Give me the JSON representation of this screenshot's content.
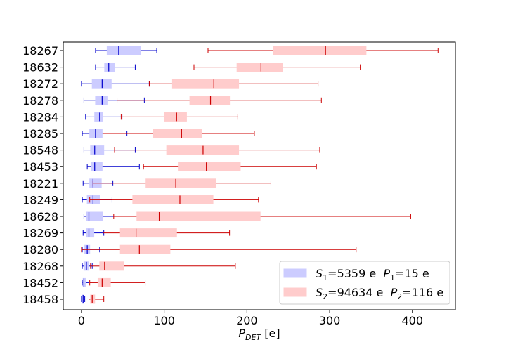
{
  "chart_data": {
    "type": "boxplot-horizontal",
    "xlabel": "P",
    "xlabel_sub": "DET",
    "xlabel_unit": " [e]",
    "xlim": [
      -22,
      452
    ],
    "xticks": [
      0,
      100,
      200,
      300,
      400
    ],
    "tick_labels": [
      "0",
      "100",
      "200",
      "300",
      "400"
    ],
    "categories": [
      "18267",
      "18632",
      "18272",
      "18278",
      "18284",
      "18285",
      "18548",
      "18453",
      "18221",
      "18249",
      "18628",
      "18269",
      "18280",
      "18268",
      "18452",
      "18458"
    ],
    "series": [
      {
        "name": "S1",
        "color": "#0000cc",
        "fill": "#ccccff",
        "legend": {
          "s_sym": "S",
          "s_sub": "1",
          "s_val": "=5359 e  ",
          "p_sym": "P",
          "p_sub": "1",
          "p_val": "=15 e"
        },
        "boxes": [
          {
            "min": 17,
            "q1": 31,
            "median": 45,
            "q3": 71,
            "max": 91
          },
          {
            "min": 17,
            "q1": 28,
            "median": 33,
            "q3": 40,
            "max": 65
          },
          {
            "min": 0,
            "q1": 13,
            "median": 25,
            "q3": 36,
            "max": 82
          },
          {
            "min": 3,
            "q1": 17,
            "median": 25,
            "q3": 31,
            "max": 76
          },
          {
            "min": 5,
            "q1": 16,
            "median": 22,
            "q3": 26,
            "max": 49
          },
          {
            "min": 1,
            "q1": 10,
            "median": 17,
            "q3": 25,
            "max": 55
          },
          {
            "min": 3,
            "q1": 11,
            "median": 16,
            "q3": 27,
            "max": 65
          },
          {
            "min": 7,
            "q1": 12,
            "median": 16,
            "q3": 25,
            "max": 70
          },
          {
            "min": 2,
            "q1": 10,
            "median": 14,
            "q3": 24,
            "max": 38
          },
          {
            "min": 1,
            "q1": 7,
            "median": 14,
            "q3": 22,
            "max": 37
          },
          {
            "min": 3,
            "q1": 6,
            "median": 9,
            "q3": 26,
            "max": 84
          },
          {
            "min": 2,
            "q1": 6,
            "median": 9,
            "q3": 15,
            "max": 27
          },
          {
            "min": 1,
            "q1": 4,
            "median": 7,
            "q3": 10,
            "max": 22
          },
          {
            "min": 1,
            "q1": 3,
            "median": 6,
            "q3": 9,
            "max": 13
          },
          {
            "min": 1,
            "q1": 2,
            "median": 3,
            "q3": 5,
            "max": 9
          },
          {
            "min": 0,
            "q1": 1,
            "median": 2,
            "q3": 3,
            "max": 4
          }
        ]
      },
      {
        "name": "S2",
        "color": "#cc0000",
        "fill": "#ffcccc",
        "legend": {
          "s_sym": "S",
          "s_sub": "2",
          "s_val": "=94634 e  ",
          "p_sym": "P",
          "p_sub": "2",
          "p_val": "=116 e"
        },
        "boxes": [
          {
            "min": 153,
            "q1": 232,
            "median": 295,
            "q3": 344,
            "max": 431
          },
          {
            "min": 136,
            "q1": 188,
            "median": 217,
            "q3": 243,
            "max": 337
          },
          {
            "min": 82,
            "q1": 110,
            "median": 160,
            "q3": 190,
            "max": 286
          },
          {
            "min": 43,
            "q1": 131,
            "median": 156,
            "q3": 179,
            "max": 290
          },
          {
            "min": 48,
            "q1": 100,
            "median": 115,
            "q3": 127,
            "max": 189
          },
          {
            "min": 26,
            "q1": 87,
            "median": 121,
            "q3": 145,
            "max": 209
          },
          {
            "min": 40,
            "q1": 103,
            "median": 147,
            "q3": 190,
            "max": 288
          },
          {
            "min": 75,
            "q1": 117,
            "median": 151,
            "q3": 192,
            "max": 284
          },
          {
            "min": 14,
            "q1": 78,
            "median": 114,
            "q3": 162,
            "max": 229
          },
          {
            "min": 10,
            "q1": 62,
            "median": 119,
            "q3": 159,
            "max": 214
          },
          {
            "min": 39,
            "q1": 67,
            "median": 94,
            "q3": 216,
            "max": 398
          },
          {
            "min": 26,
            "q1": 47,
            "median": 66,
            "q3": 115,
            "max": 179
          },
          {
            "min": 0,
            "q1": 47,
            "median": 70,
            "q3": 107,
            "max": 332
          },
          {
            "min": 11,
            "q1": 22,
            "median": 28,
            "q3": 51,
            "max": 186
          },
          {
            "min": 10,
            "q1": 20,
            "median": 25,
            "q3": 35,
            "max": 77
          },
          {
            "min": 9,
            "q1": 11,
            "median": 13,
            "q3": 16,
            "max": 27
          }
        ]
      }
    ],
    "legend_position": "lower-right"
  }
}
